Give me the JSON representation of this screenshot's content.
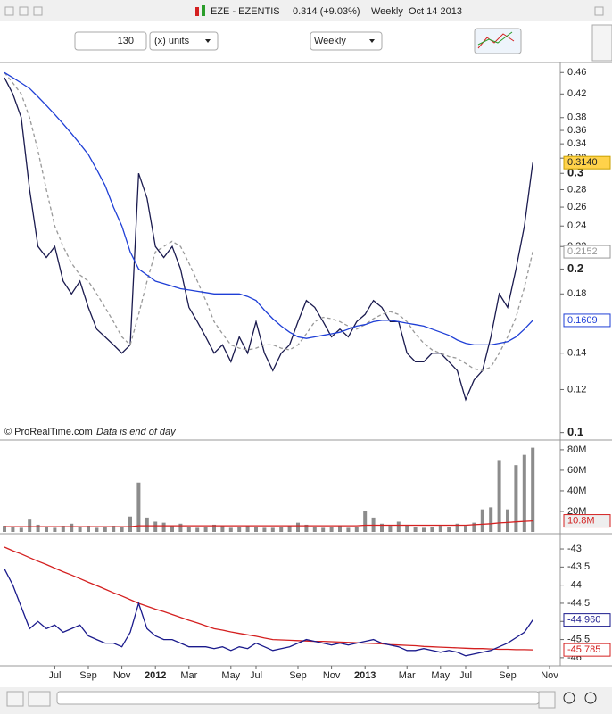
{
  "header": {
    "symbol": "EZE - EZENTIS",
    "quote": "0.314 (+9.03%)",
    "period": "Weekly",
    "date": "Oct 14 2013"
  },
  "toolbar": {
    "bars": "130",
    "units": "(x) units",
    "period": "Weekly"
  },
  "chart_data": [
    {
      "type": "line",
      "log_scale": true,
      "source": "© ProRealTime.com",
      "note": "Data is end of day",
      "ylim": [
        0.098,
        0.48
      ],
      "yticks": [
        0.1,
        0.12,
        0.14,
        0.18,
        0.2,
        0.22,
        0.24,
        0.26,
        0.28,
        0.3,
        0.32,
        0.34,
        0.36,
        0.38,
        0.42,
        0.46
      ],
      "series": [
        {
          "color": "#1a1a4e",
          "values": [
            0.45,
            0.42,
            0.38,
            0.28,
            0.22,
            0.21,
            0.22,
            0.19,
            0.18,
            0.19,
            0.17,
            0.155,
            0.15,
            0.145,
            0.14,
            0.145,
            0.3,
            0.27,
            0.22,
            0.21,
            0.22,
            0.2,
            0.17,
            0.16,
            0.15,
            0.14,
            0.145,
            0.135,
            0.15,
            0.14,
            0.16,
            0.14,
            0.13,
            0.14,
            0.145,
            0.16,
            0.175,
            0.17,
            0.16,
            0.15,
            0.155,
            0.15,
            0.16,
            0.165,
            0.175,
            0.17,
            0.16,
            0.16,
            0.14,
            0.135,
            0.135,
            0.14,
            0.14,
            0.135,
            0.13,
            0.115,
            0.125,
            0.13,
            0.15,
            0.18,
            0.17,
            0.2,
            0.24,
            0.314,
            null,
            null,
            null
          ],
          "value_labels": [
            null,
            null,
            null,
            null,
            null,
            null,
            null,
            null,
            null,
            null,
            null,
            null,
            null,
            null,
            null,
            null,
            null,
            null,
            null,
            null,
            null,
            null,
            null,
            null,
            null,
            null,
            null,
            null,
            null,
            null,
            null,
            null,
            null,
            null,
            null,
            null,
            null,
            null,
            null,
            null,
            null,
            null,
            null,
            null,
            null,
            null,
            null,
            null,
            null,
            null,
            null,
            null,
            null,
            null,
            null,
            null,
            null,
            null,
            null,
            null,
            null,
            null,
            null,
            "0.3140",
            null,
            null,
            null
          ]
        },
        {
          "color": "#999999",
          "dash": true,
          "values": [
            0.46,
            0.44,
            0.42,
            0.38,
            0.33,
            0.28,
            0.24,
            0.22,
            0.205,
            0.195,
            0.19,
            0.18,
            0.17,
            0.16,
            0.15,
            0.145,
            0.165,
            0.19,
            0.215,
            0.22,
            0.225,
            0.22,
            0.205,
            0.19,
            0.175,
            0.16,
            0.152,
            0.145,
            0.143,
            0.142,
            0.143,
            0.145,
            0.145,
            0.143,
            0.142,
            0.145,
            0.152,
            0.16,
            0.163,
            0.162,
            0.16,
            0.157,
            0.155,
            0.158,
            0.162,
            0.165,
            0.167,
            0.165,
            0.16,
            0.152,
            0.146,
            0.142,
            0.14,
            0.138,
            0.137,
            0.134,
            0.131,
            0.13,
            0.132,
            0.14,
            0.15,
            0.163,
            0.185,
            0.2152,
            null,
            null,
            null
          ],
          "value_labels": [
            null,
            null,
            null,
            null,
            null,
            null,
            null,
            null,
            null,
            null,
            null,
            null,
            null,
            null,
            null,
            null,
            null,
            null,
            null,
            null,
            null,
            null,
            null,
            null,
            null,
            null,
            null,
            null,
            null,
            null,
            null,
            null,
            null,
            null,
            null,
            null,
            null,
            null,
            null,
            null,
            null,
            null,
            null,
            null,
            null,
            null,
            null,
            null,
            null,
            null,
            null,
            null,
            null,
            null,
            null,
            null,
            null,
            null,
            null,
            null,
            null,
            null,
            null,
            "0.2152",
            null,
            null,
            null
          ]
        },
        {
          "color": "#1f3fd6",
          "values": [
            0.46,
            0.45,
            0.44,
            0.43,
            0.415,
            0.4,
            0.385,
            0.37,
            0.355,
            0.34,
            0.325,
            0.305,
            0.285,
            0.26,
            0.24,
            0.215,
            0.2,
            0.195,
            0.19,
            0.188,
            0.186,
            0.184,
            0.183,
            0.182,
            0.181,
            0.18,
            0.18,
            0.18,
            0.18,
            0.178,
            0.175,
            0.168,
            0.162,
            0.157,
            0.153,
            0.15,
            0.149,
            0.15,
            0.151,
            0.152,
            0.153,
            0.155,
            0.157,
            0.158,
            0.16,
            0.161,
            0.161,
            0.16,
            0.159,
            0.158,
            0.157,
            0.155,
            0.153,
            0.151,
            0.148,
            0.146,
            0.145,
            0.145,
            0.145,
            0.146,
            0.147,
            0.15,
            0.155,
            0.1609,
            null,
            null,
            null
          ],
          "value_labels": [
            null,
            null,
            null,
            null,
            null,
            null,
            null,
            null,
            null,
            null,
            null,
            null,
            null,
            null,
            null,
            null,
            null,
            null,
            null,
            null,
            null,
            null,
            null,
            null,
            null,
            null,
            null,
            null,
            null,
            null,
            null,
            null,
            null,
            null,
            null,
            null,
            null,
            null,
            null,
            null,
            null,
            null,
            null,
            null,
            null,
            null,
            null,
            null,
            null,
            null,
            null,
            null,
            null,
            null,
            null,
            null,
            null,
            null,
            null,
            null,
            null,
            null,
            null,
            "0.1609",
            null,
            null,
            null
          ]
        }
      ]
    },
    {
      "type": "bar",
      "ylim": [
        0,
        86000000
      ],
      "yticks": [
        {
          "value": 20000000,
          "label": "20M"
        },
        {
          "value": 40000000,
          "label": "40M"
        },
        {
          "value": 60000000,
          "label": "60M"
        },
        {
          "value": 80000000,
          "label": "80M"
        }
      ],
      "series": [
        {
          "type": "bar",
          "color": "#8c8c8c",
          "values": [
            6000000,
            5000000,
            4000000,
            12000000,
            7000000,
            5000000,
            4000000,
            6000000,
            8000000,
            5000000,
            6000000,
            4000000,
            5000000,
            6000000,
            5000000,
            15000000,
            48000000,
            14000000,
            10000000,
            9000000,
            6000000,
            8000000,
            5000000,
            4000000,
            5000000,
            7000000,
            6000000,
            4000000,
            5000000,
            6000000,
            5000000,
            4000000,
            4000000,
            5000000,
            6000000,
            9000000,
            7000000,
            5000000,
            4000000,
            5000000,
            6000000,
            4000000,
            5000000,
            20000000,
            14000000,
            8000000,
            6000000,
            10000000,
            7000000,
            5000000,
            4000000,
            5000000,
            6000000,
            5000000,
            8000000,
            6000000,
            9000000,
            22000000,
            24000000,
            70000000,
            22000000,
            65000000,
            75000000,
            82000000,
            null,
            null,
            null
          ]
        },
        {
          "type": "line",
          "color": "#d42020",
          "values": [
            5000000,
            5000000,
            5000000,
            5000000,
            5000000,
            5000000,
            5000000,
            5000000,
            5000000,
            5000000,
            5000000,
            5000000,
            5000000,
            5000000,
            5000000,
            5000000,
            6000000,
            6000000,
            6000000,
            6000000,
            6000000,
            6000000,
            6000000,
            6000000,
            6000000,
            6000000,
            6000000,
            6000000,
            6000000,
            6000000,
            6000000,
            6000000,
            6000000,
            6000000,
            6000000,
            6000000,
            6000000,
            6000000,
            6000000,
            6000000,
            6000000,
            6000000,
            6000000,
            6500000,
            6500000,
            6500000,
            6500000,
            6500000,
            6500000,
            6500000,
            6500000,
            6500000,
            6500000,
            6500000,
            6500000,
            6500000,
            7000000,
            7500000,
            8000000,
            8800000,
            9200000,
            9800000,
            10300000,
            10800000,
            null,
            null,
            null
          ],
          "value_labels": [
            null,
            null,
            null,
            null,
            null,
            null,
            null,
            null,
            null,
            null,
            null,
            null,
            null,
            null,
            null,
            null,
            null,
            null,
            null,
            null,
            null,
            null,
            null,
            null,
            null,
            null,
            null,
            null,
            null,
            null,
            null,
            null,
            null,
            null,
            null,
            null,
            null,
            null,
            null,
            null,
            null,
            null,
            null,
            null,
            null,
            null,
            null,
            null,
            null,
            null,
            null,
            null,
            null,
            null,
            null,
            null,
            null,
            null,
            null,
            null,
            null,
            null,
            null,
            "10.8M",
            null,
            null,
            null
          ]
        }
      ]
    },
    {
      "type": "line",
      "ylim": [
        -46.2,
        -42.63
      ],
      "yticks": [
        -46,
        -45.5,
        -45,
        -44.5,
        -44,
        -43.5,
        -43
      ],
      "categories": [
        null,
        null,
        null,
        null,
        null,
        null,
        "Jul",
        null,
        null,
        null,
        "Sep",
        null,
        null,
        null,
        "Nov",
        null,
        null,
        null,
        "2012",
        null,
        null,
        null,
        "Mar",
        null,
        null,
        null,
        null,
        "May",
        null,
        null,
        "Jul",
        null,
        null,
        null,
        null,
        "Sep",
        null,
        null,
        null,
        "Nov",
        null,
        null,
        null,
        "2013",
        null,
        null,
        null,
        null,
        "Mar",
        null,
        null,
        null,
        "May",
        null,
        null,
        "Jul",
        null,
        null,
        null,
        null,
        "Sep",
        null,
        null,
        null,
        null,
        "Nov",
        null
      ],
      "series": [
        {
          "color": "#d42020",
          "values": [
            -42.95,
            -43.05,
            -43.14,
            -43.24,
            -43.34,
            -43.43,
            -43.53,
            -43.63,
            -43.72,
            -43.82,
            -43.92,
            -44.01,
            -44.11,
            -44.21,
            -44.3,
            -44.4,
            -44.5,
            -44.58,
            -44.66,
            -44.73,
            -44.81,
            -44.89,
            -44.97,
            -45.04,
            -45.12,
            -45.2,
            -45.24,
            -45.29,
            -45.33,
            -45.37,
            -45.41,
            -45.46,
            -45.5,
            -45.51,
            -45.52,
            -45.53,
            -45.54,
            -45.55,
            -45.55,
            -45.56,
            -45.57,
            -45.58,
            -45.59,
            -45.6,
            -45.61,
            -45.62,
            -45.64,
            -45.65,
            -45.66,
            -45.67,
            -45.69,
            -45.7,
            -45.71,
            -45.72,
            -45.73,
            -45.74,
            -45.75,
            -45.75,
            -45.76,
            -45.77,
            -45.77,
            -45.78,
            -45.78,
            -45.785,
            null,
            null,
            null
          ],
          "value_labels": [
            null,
            null,
            null,
            null,
            null,
            null,
            null,
            null,
            null,
            null,
            null,
            null,
            null,
            null,
            null,
            null,
            null,
            null,
            null,
            null,
            null,
            null,
            null,
            null,
            null,
            null,
            null,
            null,
            null,
            null,
            null,
            null,
            null,
            null,
            null,
            null,
            null,
            null,
            null,
            null,
            null,
            null,
            null,
            null,
            null,
            null,
            null,
            null,
            null,
            null,
            null,
            null,
            null,
            null,
            null,
            null,
            null,
            null,
            null,
            null,
            null,
            null,
            null,
            "-45.785",
            null,
            null,
            null
          ]
        },
        {
          "color": "#1a1a8c",
          "values": [
            -43.55,
            -44.0,
            -44.6,
            -45.2,
            -45.0,
            -45.2,
            -45.1,
            -45.3,
            -45.2,
            -45.1,
            -45.4,
            -45.5,
            -45.6,
            -45.6,
            -45.7,
            -45.3,
            -44.5,
            -45.2,
            -45.4,
            -45.5,
            -45.5,
            -45.6,
            -45.7,
            -45.7,
            -45.7,
            -45.75,
            -45.7,
            -45.8,
            -45.7,
            -45.75,
            -45.6,
            -45.7,
            -45.8,
            -45.75,
            -45.7,
            -45.6,
            -45.5,
            -45.55,
            -45.6,
            -45.65,
            -45.6,
            -45.65,
            -45.6,
            -45.55,
            -45.5,
            -45.6,
            -45.65,
            -45.7,
            -45.8,
            -45.8,
            -45.75,
            -45.8,
            -45.85,
            -45.8,
            -45.85,
            -45.95,
            -45.9,
            -45.85,
            -45.8,
            -45.7,
            -45.6,
            -45.45,
            -45.3,
            -44.96,
            null,
            null,
            null
          ],
          "value_labels": [
            null,
            null,
            null,
            null,
            null,
            null,
            null,
            null,
            null,
            null,
            null,
            null,
            null,
            null,
            null,
            null,
            null,
            null,
            null,
            null,
            null,
            null,
            null,
            null,
            null,
            null,
            null,
            null,
            null,
            null,
            null,
            null,
            null,
            null,
            null,
            null,
            null,
            null,
            null,
            null,
            null,
            null,
            null,
            null,
            null,
            null,
            null,
            null,
            null,
            null,
            null,
            null,
            null,
            null,
            null,
            null,
            null,
            null,
            null,
            null,
            null,
            null,
            null,
            "-44.960",
            null,
            null,
            null
          ]
        }
      ]
    }
  ]
}
